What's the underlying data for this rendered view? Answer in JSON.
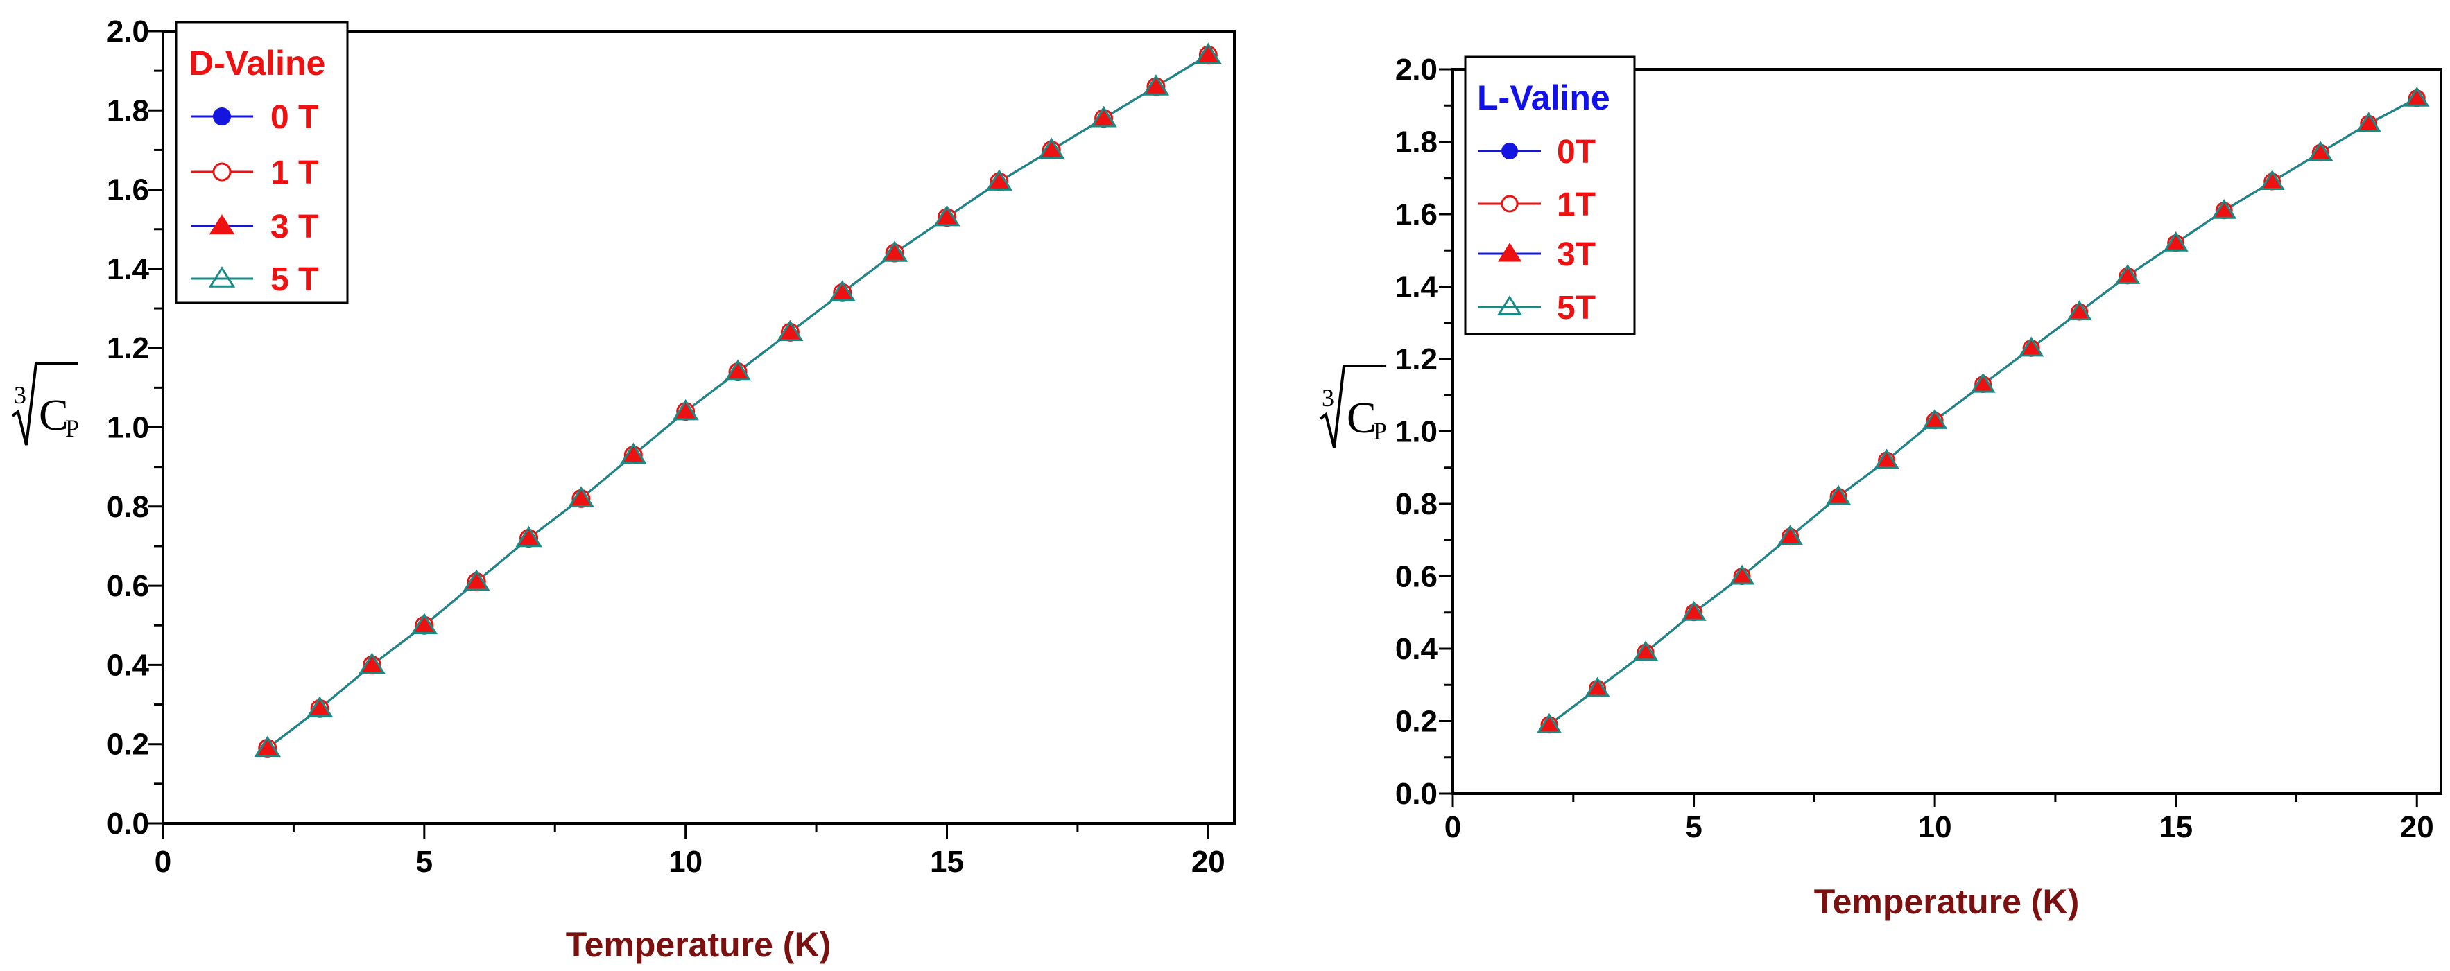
{
  "colors": {
    "axis_title": "#7B1010",
    "legend_label": "#EE1111",
    "legend_title_d": "#EE1111",
    "legend_title_l": "#1111EE",
    "s0": "#1515E0",
    "s1": "#EE1111",
    "s3": "#EE1111",
    "s5": "#1A8A84",
    "axis": "#000000"
  },
  "chart_data": [
    {
      "type": "line",
      "id": "d-valine",
      "legend_title": "D-Valine",
      "xlabel": "Temperature (K)",
      "ylabel": {
        "index": "3",
        "base": "C",
        "sub": "P"
      },
      "xlim": [
        0,
        20.5
      ],
      "ylim": [
        0.0,
        2.0
      ],
      "x_ticks": [
        "0",
        "5",
        "10",
        "15",
        "20"
      ],
      "y_ticks": [
        "0.0",
        "0.2",
        "0.4",
        "0.6",
        "0.8",
        "1.0",
        "1.2",
        "1.4",
        "1.6",
        "1.8",
        "2.0"
      ],
      "x": [
        2,
        3,
        4,
        5,
        6,
        7,
        8,
        9,
        10,
        11,
        12,
        13,
        14,
        15,
        16,
        17,
        18,
        19,
        20
      ],
      "series": [
        {
          "name": "0 T",
          "marker": "filled-circle",
          "values": [
            0.19,
            0.29,
            0.4,
            0.5,
            0.61,
            0.72,
            0.82,
            0.93,
            1.04,
            1.14,
            1.24,
            1.34,
            1.44,
            1.53,
            1.62,
            1.7,
            1.78,
            1.86,
            1.94
          ]
        },
        {
          "name": "1 T",
          "marker": "open-circle",
          "values": [
            0.19,
            0.29,
            0.4,
            0.5,
            0.61,
            0.72,
            0.82,
            0.93,
            1.04,
            1.14,
            1.24,
            1.34,
            1.44,
            1.53,
            1.62,
            1.7,
            1.78,
            1.86,
            1.94
          ]
        },
        {
          "name": "3 T",
          "marker": "filled-triangle",
          "values": [
            0.19,
            0.29,
            0.4,
            0.5,
            0.61,
            0.72,
            0.82,
            0.93,
            1.04,
            1.14,
            1.24,
            1.34,
            1.44,
            1.53,
            1.62,
            1.7,
            1.78,
            1.86,
            1.94
          ]
        },
        {
          "name": "5 T",
          "marker": "open-triangle",
          "values": [
            0.19,
            0.29,
            0.4,
            0.5,
            0.61,
            0.72,
            0.82,
            0.93,
            1.04,
            1.14,
            1.24,
            1.34,
            1.44,
            1.53,
            1.62,
            1.7,
            1.78,
            1.86,
            1.94
          ]
        }
      ]
    },
    {
      "type": "line",
      "id": "l-valine",
      "legend_title": "L-Valine",
      "xlabel": "Temperature (K)",
      "ylabel": {
        "index": "3",
        "base": "C",
        "sub": "P"
      },
      "xlim": [
        0,
        20.5
      ],
      "ylim": [
        0.0,
        2.0
      ],
      "x_ticks": [
        "0",
        "5",
        "10",
        "15",
        "20"
      ],
      "y_ticks": [
        "0.0",
        "0.2",
        "0.4",
        "0.6",
        "0.8",
        "1.0",
        "1.2",
        "1.4",
        "1.6",
        "1.8",
        "2.0"
      ],
      "x": [
        2,
        3,
        4,
        5,
        6,
        7,
        8,
        9,
        10,
        11,
        12,
        13,
        14,
        15,
        16,
        17,
        18,
        19,
        20
      ],
      "series": [
        {
          "name": "0T",
          "marker": "filled-circle",
          "values": [
            0.19,
            0.29,
            0.39,
            0.5,
            0.6,
            0.71,
            0.82,
            0.92,
            1.03,
            1.13,
            1.23,
            1.33,
            1.43,
            1.52,
            1.61,
            1.69,
            1.77,
            1.85,
            1.92
          ]
        },
        {
          "name": "1T",
          "marker": "open-circle",
          "values": [
            0.19,
            0.29,
            0.39,
            0.5,
            0.6,
            0.71,
            0.82,
            0.92,
            1.03,
            1.13,
            1.23,
            1.33,
            1.43,
            1.52,
            1.61,
            1.69,
            1.77,
            1.85,
            1.92
          ]
        },
        {
          "name": "3T",
          "marker": "filled-triangle",
          "values": [
            0.19,
            0.29,
            0.39,
            0.5,
            0.6,
            0.71,
            0.82,
            0.92,
            1.03,
            1.13,
            1.23,
            1.33,
            1.43,
            1.52,
            1.61,
            1.69,
            1.77,
            1.85,
            1.92
          ]
        },
        {
          "name": "5T",
          "marker": "open-triangle",
          "values": [
            0.19,
            0.29,
            0.39,
            0.5,
            0.6,
            0.71,
            0.82,
            0.92,
            1.03,
            1.13,
            1.23,
            1.33,
            1.43,
            1.52,
            1.61,
            1.69,
            1.77,
            1.85,
            1.92
          ]
        }
      ]
    }
  ]
}
